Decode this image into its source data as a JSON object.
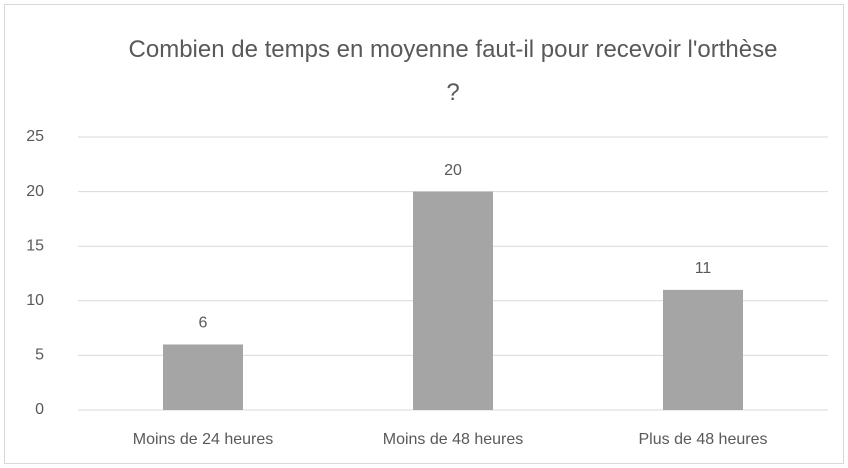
{
  "chart_data": {
    "type": "bar",
    "title": "Combien de temps en moyenne faut-il pour recevoir l'orthèse ?",
    "categories": [
      "Moins de 24 heures",
      "Moins de 48 heures",
      "Plus de 48 heures"
    ],
    "values": [
      6,
      20,
      11
    ],
    "color": "#a5a5a5",
    "ylim": [
      0,
      25
    ],
    "yticks": [
      0,
      5,
      10,
      15,
      20,
      25
    ],
    "grid": true,
    "data_labels": true
  }
}
